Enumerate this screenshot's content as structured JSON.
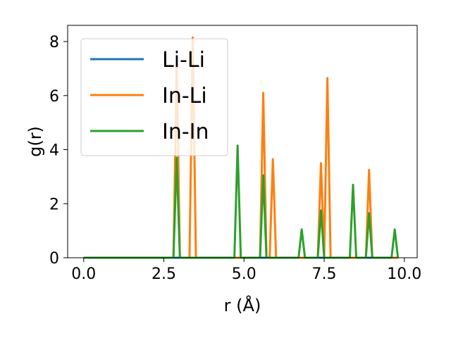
{
  "chart_data": {
    "type": "line",
    "title": "",
    "xlabel": "r (Å)",
    "ylabel": "g(r)",
    "xlim": [
      -0.5,
      10.4
    ],
    "ylim": [
      0,
      8.6
    ],
    "x_ticks": [
      "0.0",
      "2.5",
      "5.0",
      "7.5",
      "10.0"
    ],
    "y_ticks": [
      "0",
      "2",
      "4",
      "6",
      "8"
    ],
    "grid": false,
    "legend_position": "upper-left",
    "series": [
      {
        "name": "Li-Li",
        "color": "#1f77b4",
        "peaks": []
      },
      {
        "name": "In-Li",
        "color": "#ff7f0e",
        "peaks": [
          {
            "r": 2.92,
            "g": 7.3
          },
          {
            "r": 3.42,
            "g": 8.15
          },
          {
            "r": 5.6,
            "g": 6.1
          },
          {
            "r": 5.9,
            "g": 3.65
          },
          {
            "r": 7.4,
            "g": 3.5
          },
          {
            "r": 7.6,
            "g": 6.65
          },
          {
            "r": 8.9,
            "g": 3.25
          }
        ]
      },
      {
        "name": "In-In",
        "color": "#2ca02c",
        "peaks": [
          {
            "r": 2.92,
            "g": 3.7
          },
          {
            "r": 4.8,
            "g": 4.15
          },
          {
            "r": 5.6,
            "g": 3.05
          },
          {
            "r": 6.8,
            "g": 1.05
          },
          {
            "r": 7.4,
            "g": 1.75
          },
          {
            "r": 8.4,
            "g": 2.7
          },
          {
            "r": 8.9,
            "g": 1.65
          },
          {
            "r": 9.7,
            "g": 1.05
          }
        ]
      }
    ],
    "r_range": [
      0.0,
      9.85
    ]
  }
}
